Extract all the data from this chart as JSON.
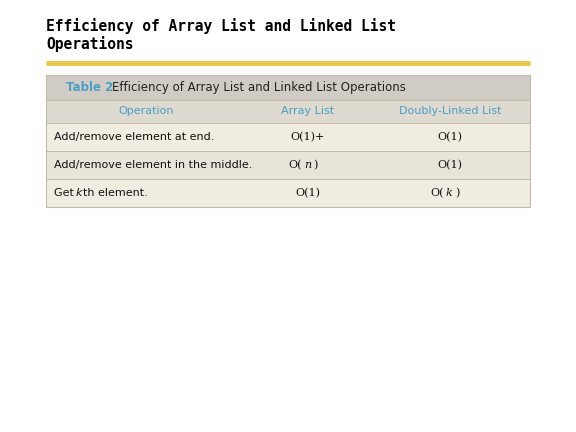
{
  "title_line1": "Efficiency of Array List and Linked List",
  "title_line2": "Operations",
  "title_font": "monospace",
  "title_fontsize": 10.5,
  "title_color": "#000000",
  "separator_color": "#E8C840",
  "table_caption_bold": "Table 2",
  "table_caption_rest": "  Efficiency of Array List and Linked List Operations",
  "table_caption_color": "#4a9fc8",
  "table_caption_fontsize": 8.5,
  "header_color": "#4a9fc8",
  "header_fontsize": 8,
  "col_headers": [
    "Operation",
    "Array List",
    "Doubly-Linked List"
  ],
  "rows": [
    [
      "Add/remove element at end.",
      "O(1)+",
      "O(1)"
    ],
    [
      "Add/remove element in the middle.",
      "O(n)",
      "O(1)"
    ],
    [
      "Get kth element.",
      "O(1)",
      "O(k)"
    ]
  ],
  "cell_fontsize": 8,
  "cell_color": "#111111",
  "caption_row_bg": "#d0ccc4",
  "header_row_bg": "#dedad0",
  "row_bg_light": "#f0ece0",
  "row_bg_dark": "#e8e4d8",
  "line_color": "#c0bcb0",
  "separator_color_y": "#E8C840",
  "bg_color": "#ffffff"
}
